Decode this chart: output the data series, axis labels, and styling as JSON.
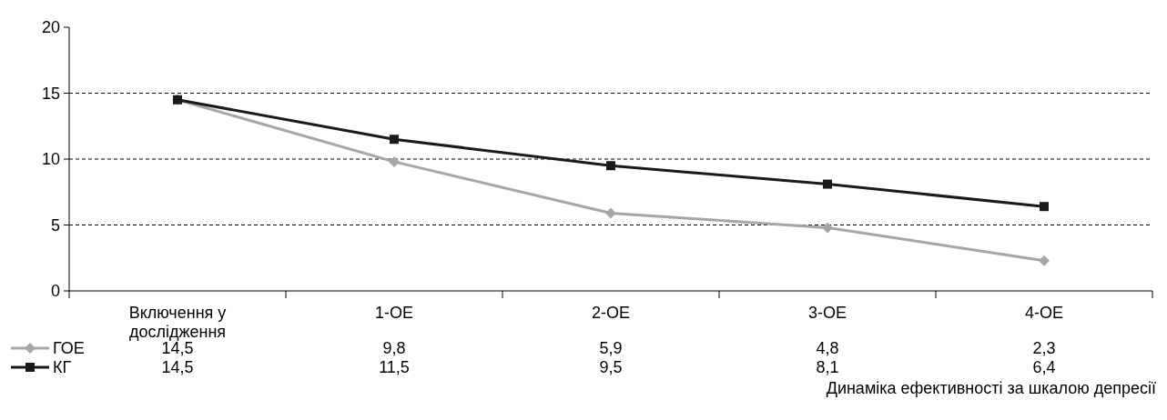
{
  "chart_data": {
    "type": "line",
    "xlabel": "Динаміка ефективності за шкалою депресії",
    "categories": [
      "Включення у дослідження",
      "1-ОЕ",
      "2-ОЕ",
      "3-ОЕ",
      "4-ОЕ"
    ],
    "series": [
      {
        "name": "ГОЕ",
        "color": "#a6a6a6",
        "marker": "diamond",
        "values": [
          14.5,
          9.8,
          5.9,
          4.8,
          2.3
        ],
        "value_labels": [
          "14,5",
          "9,8",
          "5,9",
          "4,8",
          "2,3"
        ]
      },
      {
        "name": "КГ",
        "color": "#1a1a1a",
        "marker": "square",
        "values": [
          14.5,
          11.5,
          9.5,
          8.1,
          6.4
        ],
        "value_labels": [
          "14,5",
          "11,5",
          "9,5",
          "8,1",
          "6,4"
        ]
      }
    ],
    "ylim": [
      0,
      20
    ],
    "yticks": [
      0,
      5,
      10,
      15,
      20
    ],
    "grid": "y",
    "line_style": "solid",
    "legend": "bottom left"
  }
}
